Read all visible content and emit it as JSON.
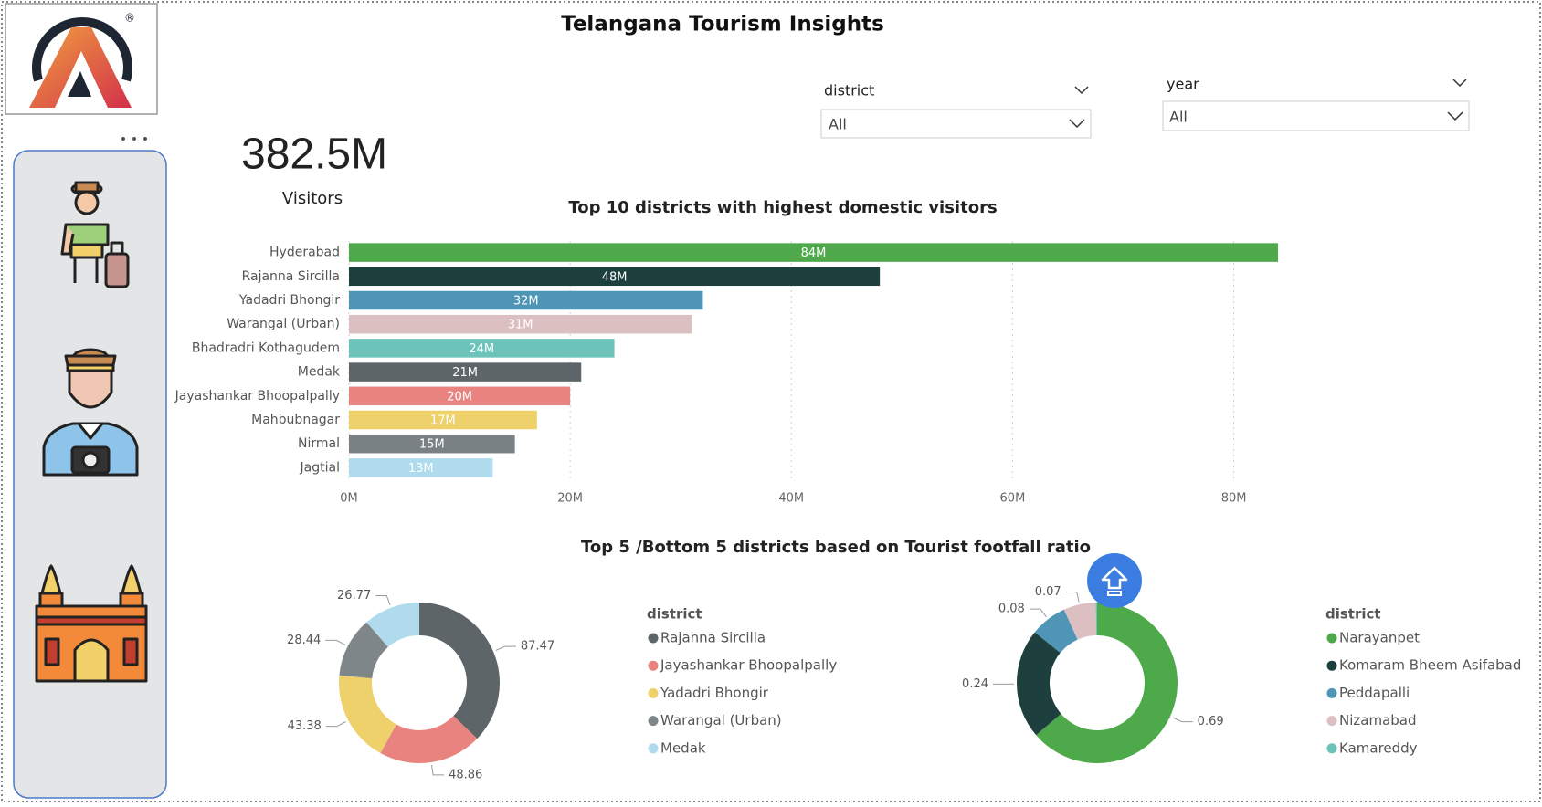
{
  "header": {
    "title": "Telangana Tourism Insights"
  },
  "kpi": {
    "value": "382.5M",
    "label": "Visitors"
  },
  "filters": [
    {
      "label": "district",
      "value": "All"
    },
    {
      "label": "year",
      "value": "All"
    }
  ],
  "chart_data": [
    {
      "type": "bar",
      "orientation": "horizontal",
      "title": "Top 10 districts with  highest domestic visitors",
      "categories": [
        "Hyderabad",
        "Rajanna Sircilla",
        "Yadadri Bhongir",
        "Warangal (Urban)",
        "Bhadradri Kothagudem",
        "Medak",
        "Jayashankar Bhoopalpally",
        "Mahbubnagar",
        "Nirmal",
        "Jagtial"
      ],
      "values": [
        84,
        48,
        32,
        31,
        24,
        21,
        20,
        17,
        15,
        13
      ],
      "value_labels": [
        "84M",
        "48M",
        "32M",
        "31M",
        "24M",
        "21M",
        "20M",
        "17M",
        "15M",
        "13M"
      ],
      "colors": [
        "#4ea94b",
        "#1d3f3e",
        "#4f95b6",
        "#dcbfc1",
        "#6bc3b9",
        "#5d6568",
        "#e9837f",
        "#eed16b",
        "#7a8184",
        "#afdbec"
      ],
      "xlim": [
        0,
        84
      ],
      "xticks": [
        {
          "value": 0,
          "label": "0M"
        },
        {
          "value": 20,
          "label": "20M"
        },
        {
          "value": 40,
          "label": "40M"
        },
        {
          "value": 60,
          "label": "60M"
        },
        {
          "value": 80,
          "label": "80M"
        }
      ],
      "grid": true
    },
    {
      "type": "donut",
      "title": "Top 5 /Bottom 5 districts based on Tourist footfall ratio",
      "legend_title": "district",
      "categories": [
        "Rajanna Sircilla",
        "Jayashankar Bhoopalpally",
        "Yadadri Bhongir",
        "Warangal (Urban)",
        "Medak"
      ],
      "values": [
        87.47,
        48.86,
        43.38,
        28.44,
        26.77
      ],
      "colors": [
        "#5d6568",
        "#e9837f",
        "#eed16b",
        "#7f8689",
        "#afdbec"
      ]
    },
    {
      "type": "donut",
      "legend_title": "district",
      "categories": [
        "Narayanpet",
        "Komaram Bheem Asifabad",
        "Peddapalli",
        "Nizamabad",
        "Kamareddy"
      ],
      "values": [
        0.69,
        0.24,
        0.08,
        0.07,
        0.003
      ],
      "colors": [
        "#4ea94b",
        "#1d3f3e",
        "#4f95b6",
        "#dcbfc1",
        "#6bc3b9"
      ]
    }
  ]
}
